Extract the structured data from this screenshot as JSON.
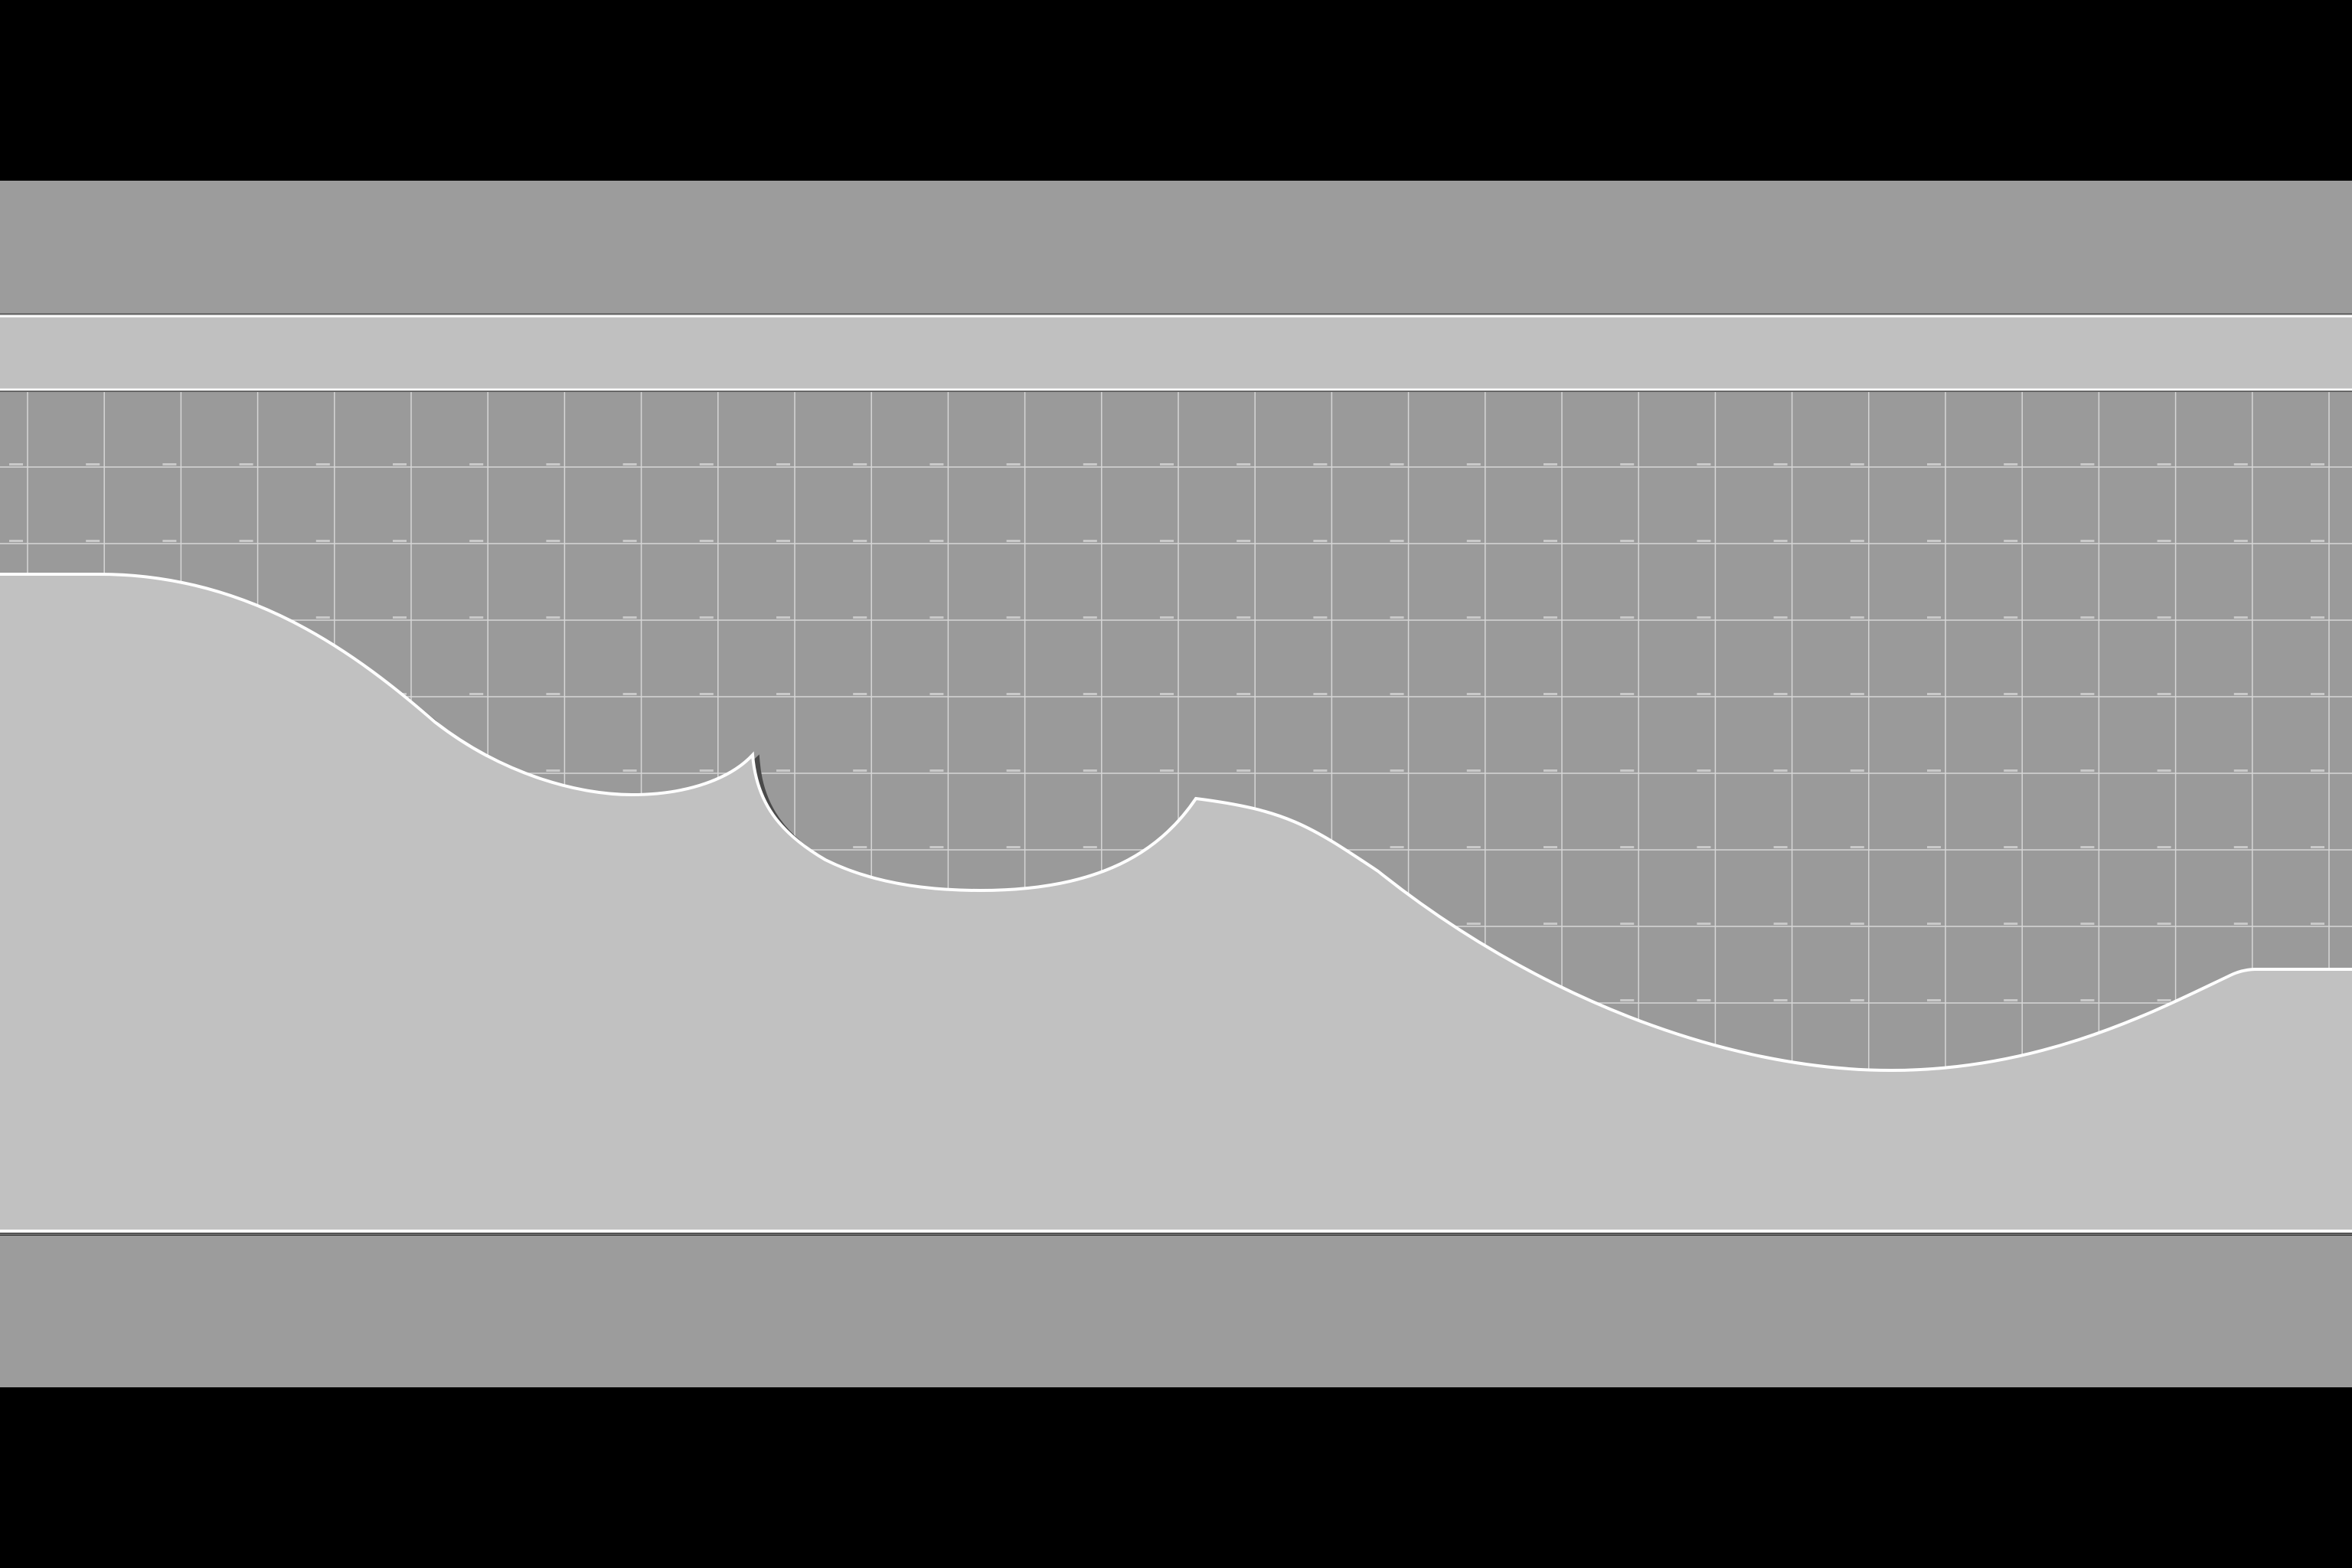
{
  "scene": {
    "type": "2d-level-layout",
    "colors": {
      "letterbox": "#000000",
      "background_band": "#9c9c9c",
      "ceiling_strip": "#c0c0c0",
      "grid_area": "#9a9a9a",
      "grid_lines": "#d6d6d6",
      "grid_labels": "#f0f0f0",
      "terrain_fill": "#c1c1c1",
      "terrain_outline": "#ffffff",
      "terrain_shadow": "#4a4a4a",
      "floor_band": "#9c9c9c"
    },
    "regions": [
      "top-letterbox",
      "upper-background-band",
      "ceiling-strip",
      "grid-area",
      "terrain",
      "lower-background-band",
      "bottom-letterbox"
    ]
  }
}
